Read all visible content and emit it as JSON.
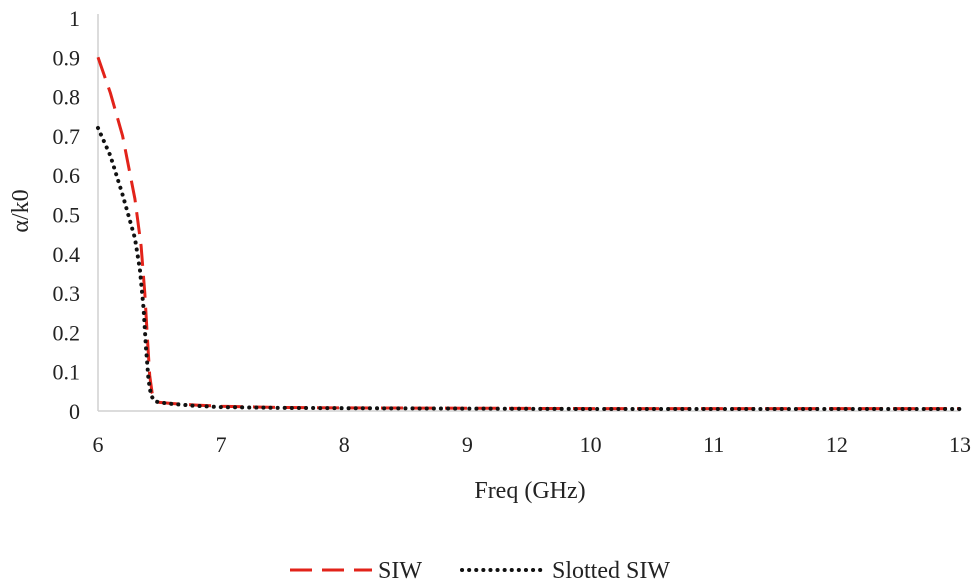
{
  "chart_data": {
    "type": "line",
    "title": "",
    "xlabel": "Freq (GHz)",
    "ylabel": "α/k0",
    "xlim": [
      6,
      13
    ],
    "ylim": [
      0,
      1
    ],
    "x_ticks": [
      "6",
      "7",
      "8",
      "9",
      "10",
      "11",
      "12",
      "13"
    ],
    "y_ticks": [
      "0",
      "0.1",
      "0.2",
      "0.3",
      "0.4",
      "0.5",
      "0.6",
      "0.7",
      "0.8",
      "0.9",
      "1"
    ],
    "grid": false,
    "legend_position": "bottom",
    "series": [
      {
        "name": "SIW",
        "color": "#e2231a",
        "style": "dashed",
        "x": [
          6.0,
          6.1,
          6.2,
          6.3,
          6.35,
          6.38,
          6.4,
          6.42,
          6.44,
          6.47,
          6.5,
          6.6,
          6.8,
          7.0,
          7.5,
          8.0,
          9.0,
          10.0,
          11.0,
          12.0,
          13.0
        ],
        "y": [
          0.9,
          0.81,
          0.7,
          0.54,
          0.42,
          0.3,
          0.19,
          0.09,
          0.045,
          0.025,
          0.022,
          0.019,
          0.015,
          0.012,
          0.009,
          0.008,
          0.007,
          0.006,
          0.006,
          0.006,
          0.006
        ]
      },
      {
        "name": "Slotted SIW",
        "color": "#111111",
        "style": "dotted",
        "x": [
          6.0,
          6.1,
          6.2,
          6.3,
          6.34,
          6.37,
          6.39,
          6.41,
          6.43,
          6.46,
          6.5,
          6.6,
          6.8,
          7.0,
          7.5,
          8.0,
          9.0,
          10.0,
          11.0,
          12.0,
          13.0
        ],
        "y": [
          0.72,
          0.65,
          0.55,
          0.44,
          0.36,
          0.26,
          0.16,
          0.08,
          0.04,
          0.025,
          0.022,
          0.018,
          0.013,
          0.01,
          0.008,
          0.007,
          0.006,
          0.005,
          0.005,
          0.005,
          0.005
        ]
      }
    ]
  }
}
